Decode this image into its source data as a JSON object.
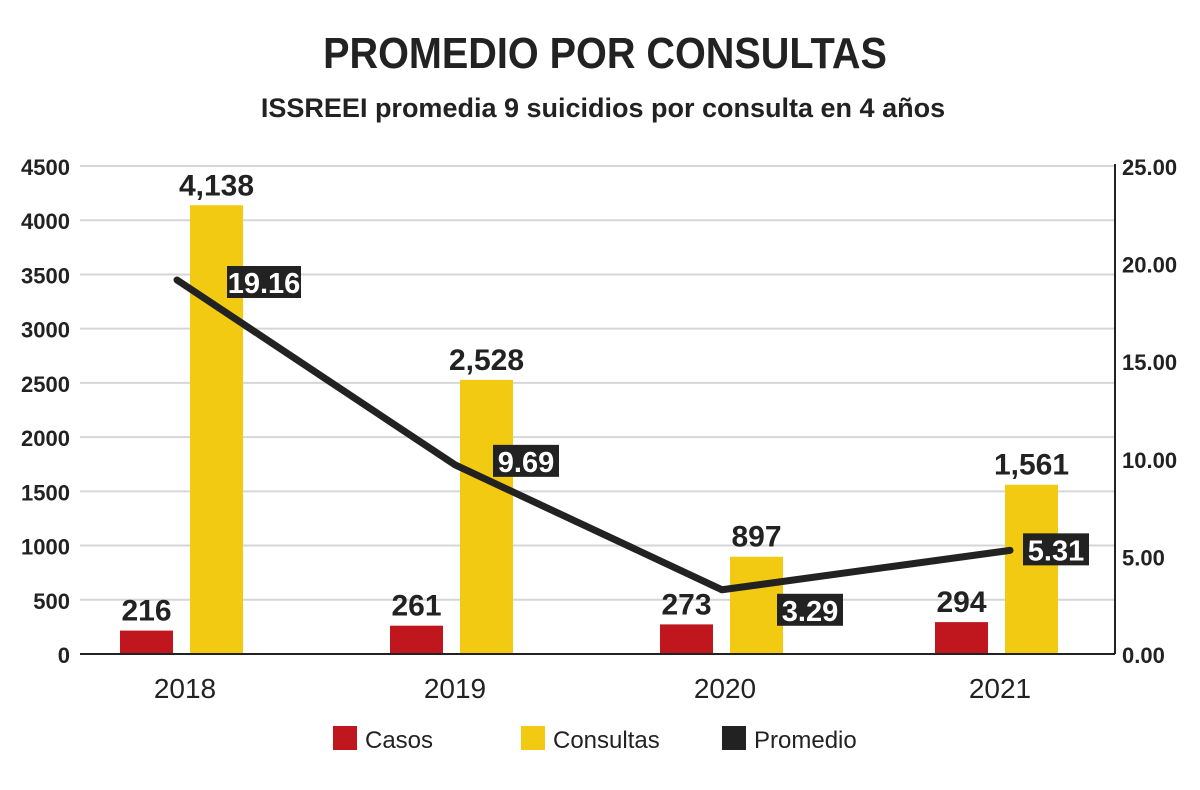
{
  "colors": {
    "casos": "#C0161E",
    "consultas": "#F2CA12",
    "promedio": "#222222",
    "grid": "#D6D6D6"
  },
  "chart_data": {
    "type": "bar",
    "title": "PROMEDIO POR CONSULTAS",
    "subtitle": "ISSREEI promedia 9 suicidios por consulta en 4 años",
    "categories": [
      "2018",
      "2019",
      "2020",
      "2021"
    ],
    "series": [
      {
        "name": "Casos",
        "type": "bar",
        "axis": "left",
        "values": [
          216,
          261,
          273,
          294
        ],
        "labels": [
          "216",
          "261",
          "273",
          "294"
        ]
      },
      {
        "name": "Consultas",
        "type": "bar",
        "axis": "left",
        "values": [
          4138,
          2528,
          897,
          1561
        ],
        "labels": [
          "4,138",
          "2,528",
          "897",
          "1,561"
        ]
      },
      {
        "name": "Promedio",
        "type": "line",
        "axis": "right",
        "values": [
          19.16,
          9.69,
          3.29,
          5.31
        ],
        "labels": [
          "19.16",
          "9.69",
          "3.29",
          "5.31"
        ]
      }
    ],
    "left_axis": {
      "ylim": [
        0,
        4500
      ],
      "ticks": [
        "0",
        "500",
        "1000",
        "1500",
        "2000",
        "2500",
        "3000",
        "3500",
        "4000",
        "4500"
      ]
    },
    "right_axis": {
      "ylim": [
        0,
        25
      ],
      "ticks": [
        "0.00",
        "5.00",
        "10.00",
        "15.00",
        "20.00",
        "25.00"
      ]
    },
    "grid": true,
    "legend": "bottom-center"
  }
}
